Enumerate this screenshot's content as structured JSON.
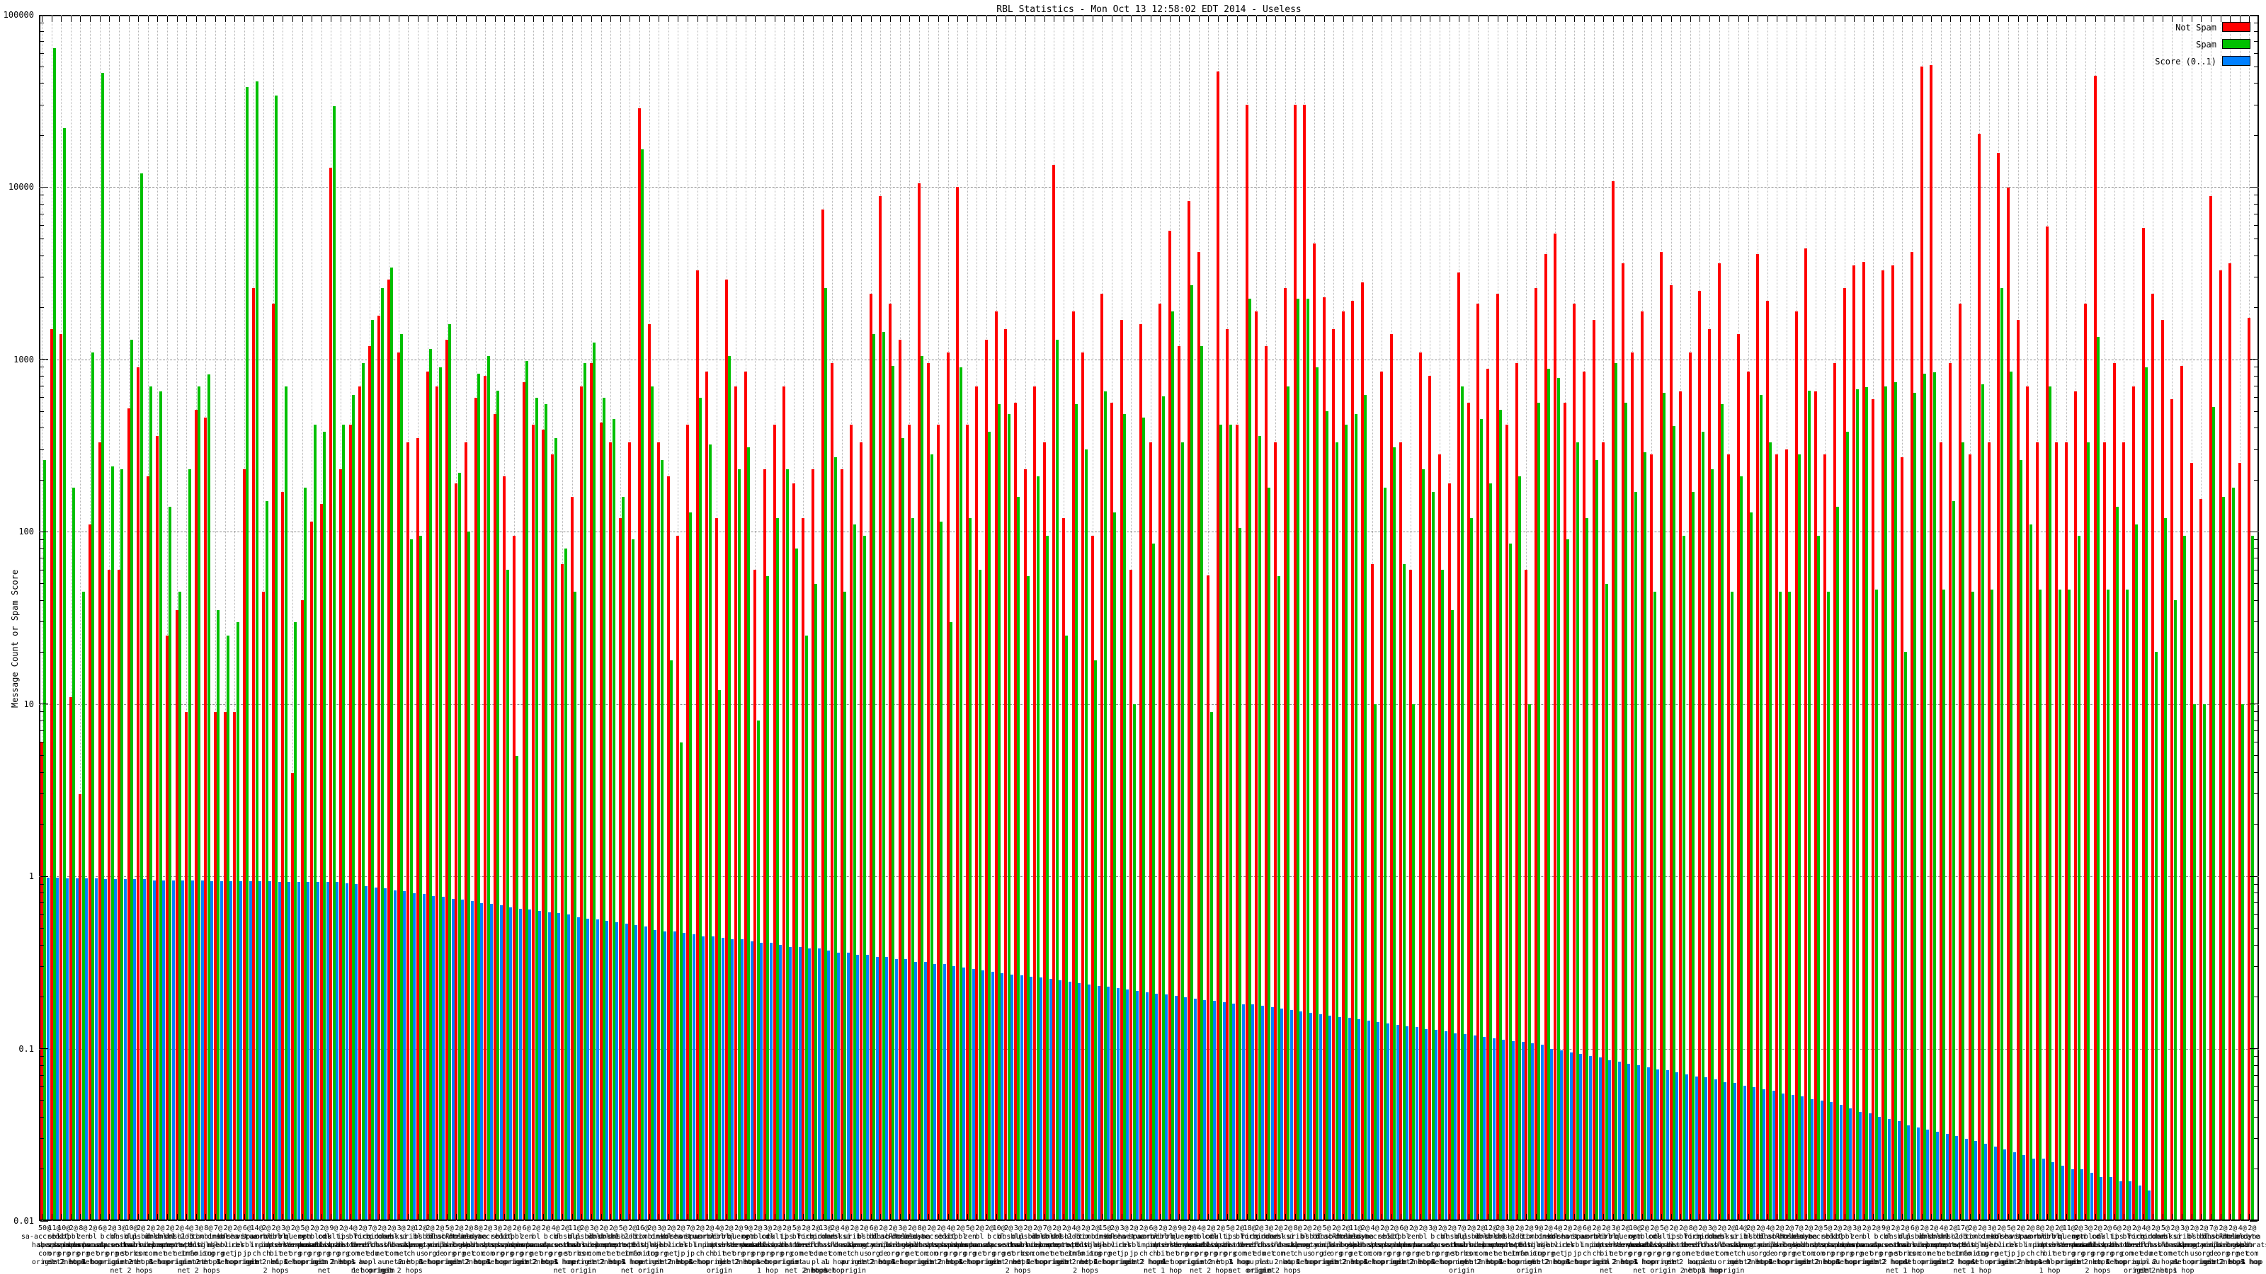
{
  "title": "RBL Statistics - Mon Oct 13 12:58:02 EDT 2014 - Useless",
  "y_axis": {
    "label": "Message Count or Spam Score",
    "tick_labels": [
      "100000",
      "10000",
      "1000",
      "100",
      "10",
      "1",
      "0.1",
      "0.01"
    ],
    "min": 0.01,
    "max": 100000,
    "scale": "log"
  },
  "legend": [
    {
      "label": "Not Spam",
      "color": "#ff0000"
    },
    {
      "label": "Spam",
      "color": "#00c000"
    },
    {
      "label": "Score (0..1)",
      "color": "#0080ff"
    }
  ],
  "chart_data": {
    "type": "bar",
    "title": "RBL Statistics - Mon Oct 13 12:58:02 EDT 2014 - Useless",
    "ylabel": "Message Count or Spam Score",
    "ylim": [
      0.01,
      100000
    ],
    "ylog": true,
    "grid": true,
    "legend_position": "top-right",
    "x_label_counts": [
      50,
      11,
      10,
      2,
      8,
      2,
      6,
      2,
      3,
      10,
      2,
      2,
      2,
      2,
      2,
      4,
      3,
      8,
      7,
      2,
      2,
      6,
      14,
      2,
      2,
      3,
      2,
      5,
      2,
      2,
      9,
      2,
      4,
      2,
      7,
      2,
      2,
      3,
      2,
      12,
      2,
      2,
      5,
      2,
      2,
      8,
      2,
      3,
      2,
      2,
      6,
      2,
      2,
      4,
      2,
      11,
      2,
      3,
      2,
      2,
      5,
      2,
      16,
      2,
      3,
      2,
      2,
      7,
      2,
      2,
      4,
      2,
      2,
      9,
      2,
      3,
      2,
      2,
      5,
      2,
      2,
      13,
      2,
      4,
      2,
      2,
      6,
      2,
      2,
      3,
      2,
      8,
      2,
      2,
      4,
      2,
      5,
      2,
      2,
      10,
      2,
      3,
      2,
      2,
      7,
      2,
      2,
      4,
      2,
      2,
      15,
      2,
      3,
      2,
      2,
      6,
      2,
      2,
      9,
      2,
      4,
      2,
      2,
      5,
      2,
      18,
      2,
      3,
      2,
      2,
      8,
      2,
      2,
      5,
      2,
      2,
      11,
      2,
      4,
      2,
      2,
      6,
      2,
      2,
      3,
      2,
      2,
      7,
      2,
      2,
      12,
      2,
      3,
      2,
      2,
      9,
      2,
      4,
      2,
      2,
      6,
      2,
      2,
      3,
      2,
      10,
      2,
      2,
      5,
      2,
      2,
      8,
      2,
      3,
      2,
      2,
      14,
      2,
      2,
      4,
      2,
      2,
      7,
      2,
      2,
      5,
      2,
      2,
      3,
      2,
      2,
      9,
      2,
      2,
      6,
      2,
      2,
      4,
      2,
      17,
      2,
      2,
      3,
      2,
      5,
      2,
      2,
      8,
      2,
      2,
      11,
      2,
      3,
      2,
      2,
      6,
      2,
      2,
      4,
      2,
      5,
      2,
      3,
      2,
      2,
      7,
      2,
      2,
      4,
      2
    ],
    "rbl_names": [
      "sa-accredit.habeas.com",
      "sbl.spamhaus.org",
      "xbl.spamhaus.org",
      "pbl.spamhaus.org",
      "zen.spamhaus.org",
      "bl.spamcop.net",
      "b.barracudacentral.org",
      "cbl.abuseat.org",
      "dnsbl.sorbs.net",
      "dul.dnsbl.sorbs.net",
      "psbl.surriel.com",
      "ubl.unsubscore.com",
      "dnsbl-1.uceprotect.net",
      "dnsbl-2.uceprotect.net",
      "dnsbl-3.uceprotect.net",
      "db.wpbl.info",
      "ix.dnsbl.manitu.net",
      "combined.njabl.org",
      "dnsbl.njabl.org",
      "korea.services.net",
      "short.rbl.jp",
      "virus.rbl.jp",
      "spamrbl.imp.ch",
      "wormrbl.imp.ch",
      "virbl.dnsbl.bit.nl",
      "rbl.interserver.net",
      "query.senderbase.org",
      "opm.tornevall.org",
      "netblock.pedantic.org",
      "cdl.anti-spam.org.cn",
      "multi.surbl.org",
      "ips.backscatterer.org",
      "bl.deadbeef.com",
      "ricn.dnsbl.net.au",
      "forbidden.icm.edu.pl",
      "probes.dnsbl.net.au",
      "ubl.lashback.com",
      "ksi.dnsbl.net.au",
      "uribl.swinog.ch",
      "bsb.empty.us",
      "bl.spamcannibal.org",
      "dnsbl.inps.de",
      "blackholes.mail-abuse.org",
      "dnsbl.dronebl.org",
      "truncate.gbudb.net",
      "dyna.spamrats.com"
    ],
    "hop_labels": [
      "origin",
      "1 hop",
      "2 hops",
      "net",
      "net origin",
      "net 1 hop",
      "net 2 hops"
    ],
    "series": [
      {
        "name": "Not Spam",
        "color": "#ff0000",
        "values": [
          6,
          1500,
          1400,
          11,
          3,
          110,
          330,
          60,
          60,
          520,
          900,
          210,
          360,
          25,
          35,
          9,
          510,
          460,
          9,
          9,
          9,
          230,
          2600,
          45,
          2100,
          170,
          4,
          40,
          115,
          145,
          13000,
          230,
          420,
          700,
          1200,
          1800,
          2900,
          1100,
          330,
          350,
          850,
          700,
          1300,
          190,
          330,
          600,
          800,
          480,
          210,
          95,
          740,
          420,
          390,
          280,
          65,
          160,
          700,
          950,
          430,
          330,
          120,
          330,
          28800,
          1600,
          330,
          210,
          95,
          420,
          3300,
          850,
          120,
          2900,
          700,
          850,
          60,
          230,
          420,
          700,
          190,
          120,
          230,
          7400,
          950,
          230,
          420,
          330,
          2400,
          8900,
          2100,
          1300,
          420,
          10500,
          950,
          420,
          1100,
          10000,
          420,
          700,
          1300,
          1900,
          1500,
          560,
          230,
          700,
          330,
          13500,
          120,
          1900,
          1100,
          95,
          2400,
          560,
          1700,
          60,
          1600,
          330,
          2100,
          5600,
          1200,
          8300,
          4200,
          56,
          47000,
          1500,
          420,
          30000,
          1900,
          1200,
          330,
          2600,
          30000,
          30000,
          4700,
          2300,
          1500,
          1900,
          2200,
          2800,
          65,
          850,
          1400,
          330,
          60,
          1100,
          800,
          280,
          190,
          3200,
          560,
          2100,
          880,
          2400,
          420,
          950,
          60,
          2600,
          4100,
          5400,
          560,
          2100,
          850,
          1700,
          330,
          10800,
          3600,
          1100,
          1900,
          280,
          4200,
          2700,
          650,
          1100,
          2500,
          1500,
          3600,
          280,
          1400,
          850,
          4100,
          2200,
          280,
          300,
          1900,
          4400,
          650,
          280,
          950,
          2600,
          3500,
          3700,
          590,
          3300,
          3500,
          270,
          4200,
          50000,
          51000,
          330,
          950,
          2100,
          280,
          20500,
          330,
          15800,
          9900,
          1700,
          700,
          330,
          5900,
          330,
          330,
          650,
          2100,
          44500,
          330,
          950,
          330,
          700,
          5800,
          2400,
          1700,
          590,
          920,
          250,
          155,
          8900,
          3300,
          3600,
          250,
          1750
        ]
      },
      {
        "name": "Spam",
        "color": "#00c000",
        "values": [
          260,
          64000,
          22000,
          180,
          45,
          1100,
          46000,
          240,
          230,
          1300,
          12000,
          700,
          650,
          140,
          45,
          230,
          700,
          820,
          35,
          25,
          30,
          38000,
          41000,
          150,
          34000,
          700,
          30,
          180,
          420,
          380,
          29500,
          420,
          620,
          950,
          1700,
          2600,
          3400,
          1400,
          90,
          95,
          1150,
          900,
          1600,
          220,
          100,
          830,
          1050,
          660,
          60,
          5,
          980,
          600,
          550,
          350,
          80,
          45,
          950,
          1250,
          600,
          450,
          160,
          90,
          16500,
          700,
          260,
          18,
          6,
          130,
          600,
          320,
          12,
          1050,
          230,
          310,
          8,
          55,
          120,
          230,
          80,
          25,
          50,
          2600,
          270,
          45,
          110,
          95,
          1400,
          1450,
          920,
          350,
          120,
          1050,
          280,
          115,
          30,
          900,
          120,
          60,
          380,
          550,
          480,
          160,
          55,
          210,
          95,
          1300,
          25,
          550,
          300,
          18,
          650,
          130,
          480,
          10,
          460,
          85,
          610,
          1900,
          330,
          2700,
          1200,
          9,
          420,
          420,
          105,
          2250,
          360,
          180,
          55,
          700,
          2250,
          2250,
          900,
          500,
          330,
          420,
          480,
          620,
          10,
          180,
          310,
          65,
          10,
          230,
          170,
          60,
          35,
          700,
          120,
          450,
          190,
          510,
          85,
          210,
          10,
          560,
          880,
          780,
          90,
          330,
          120,
          260,
          50,
          950,
          560,
          170,
          290,
          45,
          640,
          410,
          95,
          170,
          380,
          230,
          550,
          45,
          210,
          130,
          620,
          330,
          45,
          45,
          280,
          660,
          95,
          45,
          140,
          380,
          670,
          690,
          46,
          700,
          740,
          20,
          640,
          830,
          840,
          46,
          150,
          330,
          45,
          720,
          46,
          2600,
          850,
          260,
          110,
          46,
          700,
          46,
          46,
          95,
          330,
          1350,
          46,
          140,
          46,
          110,
          900,
          20,
          120,
          40,
          95,
          10,
          10,
          530,
          160,
          180,
          10,
          95
        ]
      },
      {
        "name": "Score (0..1)",
        "color": "#0080ff",
        "values": [
          0.98,
          0.98,
          0.97,
          0.97,
          0.97,
          0.97,
          0.96,
          0.96,
          0.96,
          0.96,
          0.96,
          0.95,
          0.95,
          0.95,
          0.95,
          0.95,
          0.95,
          0.94,
          0.94,
          0.94,
          0.94,
          0.94,
          0.94,
          0.94,
          0.93,
          0.93,
          0.93,
          0.93,
          0.93,
          0.93,
          0.93,
          0.91,
          0.9,
          0.88,
          0.86,
          0.85,
          0.83,
          0.82,
          0.8,
          0.79,
          0.77,
          0.76,
          0.74,
          0.73,
          0.72,
          0.7,
          0.69,
          0.68,
          0.66,
          0.65,
          0.64,
          0.63,
          0.62,
          0.61,
          0.6,
          0.58,
          0.57,
          0.56,
          0.55,
          0.54,
          0.53,
          0.52,
          0.51,
          0.49,
          0.48,
          0.48,
          0.47,
          0.46,
          0.45,
          0.45,
          0.44,
          0.43,
          0.43,
          0.42,
          0.41,
          0.41,
          0.4,
          0.39,
          0.39,
          0.38,
          0.38,
          0.37,
          0.36,
          0.36,
          0.35,
          0.35,
          0.34,
          0.34,
          0.33,
          0.33,
          0.32,
          0.32,
          0.31,
          0.31,
          0.3,
          0.295,
          0.29,
          0.285,
          0.28,
          0.275,
          0.27,
          0.267,
          0.262,
          0.258,
          0.253,
          0.249,
          0.245,
          0.24,
          0.236,
          0.232,
          0.228,
          0.224,
          0.22,
          0.217,
          0.213,
          0.209,
          0.206,
          0.202,
          0.199,
          0.195,
          0.192,
          0.189,
          0.186,
          0.182,
          0.18,
          0.18,
          0.177,
          0.174,
          0.171,
          0.168,
          0.165,
          0.162,
          0.159,
          0.156,
          0.153,
          0.151,
          0.148,
          0.145,
          0.143,
          0.14,
          0.138,
          0.135,
          0.133,
          0.13,
          0.128,
          0.126,
          0.123,
          0.121,
          0.119,
          0.117,
          0.115,
          0.113,
          0.111,
          0.109,
          0.107,
          0.105,
          0.1,
          0.098,
          0.095,
          0.093,
          0.091,
          0.089,
          0.086,
          0.084,
          0.082,
          0.08,
          0.078,
          0.076,
          0.075,
          0.073,
          0.071,
          0.069,
          0.068,
          0.066,
          0.064,
          0.063,
          0.061,
          0.06,
          0.058,
          0.057,
          0.055,
          0.054,
          0.053,
          0.051,
          0.05,
          0.049,
          0.047,
          0.045,
          0.043,
          0.042,
          0.04,
          0.039,
          0.038,
          0.036,
          0.035,
          0.034,
          0.033,
          0.032,
          0.031,
          0.03,
          0.029,
          0.028,
          0.027,
          0.026,
          0.025,
          0.024,
          0.023,
          0.023,
          0.022,
          0.021,
          0.02,
          0.02,
          0.019,
          0.018,
          0.018,
          0.017,
          0.017,
          0.016,
          0.015,
          0,
          0,
          0,
          0,
          0,
          0,
          0,
          0,
          0,
          0,
          0
        ]
      }
    ]
  }
}
